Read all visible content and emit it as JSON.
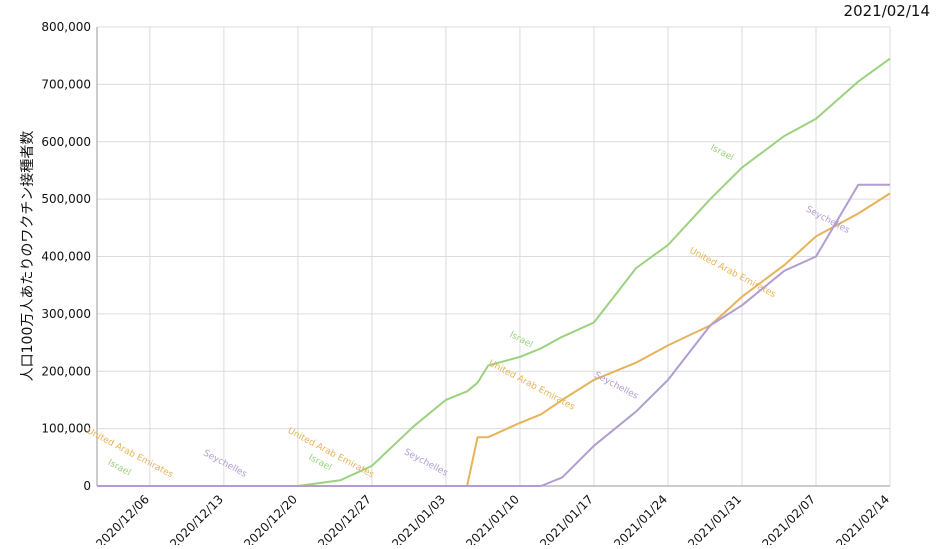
{
  "chart_data": {
    "type": "line",
    "title": "2021/02/14",
    "y_label": "人口100万人あたりのワクチン接種者数",
    "x": [
      "2020/12/01",
      "2020/12/06",
      "2020/12/13",
      "2020/12/20",
      "2020/12/24",
      "2020/12/27",
      "2020/12/31",
      "2021/01/03",
      "2021/01/05",
      "2021/01/06",
      "2021/01/07",
      "2021/01/10",
      "2021/01/12",
      "2021/01/14",
      "2021/01/17",
      "2021/01/21",
      "2021/01/24",
      "2021/01/28",
      "2021/01/31",
      "2021/02/04",
      "2021/02/07",
      "2021/02/11",
      "2021/02/14"
    ],
    "series": [
      {
        "name": "Israel",
        "color": "#9bd27f",
        "values": [
          0,
          0,
          0,
          0,
          10000,
          35000,
          105000,
          150000,
          165000,
          180000,
          210000,
          225000,
          240000,
          260000,
          285000,
          380000,
          420000,
          500000,
          555000,
          610000,
          640000,
          705000,
          745000
        ],
        "labels": [
          {
            "x": "2020/12/03",
            "y": 28000
          },
          {
            "x": "2020/12/22",
            "y": 37000
          },
          {
            "x": "2021/01/10",
            "y": 251000
          },
          {
            "x": "2021/01/29",
            "y": 577000
          }
        ]
      },
      {
        "name": "United Arab Emirates",
        "color": "#e6b35a",
        "values": [
          0,
          0,
          0,
          0,
          0,
          0,
          0,
          0,
          0,
          85000,
          85000,
          110000,
          125000,
          150000,
          185000,
          215000,
          245000,
          280000,
          330000,
          385000,
          435000,
          475000,
          510000
        ],
        "labels": [
          {
            "x": "2020/12/04",
            "y": 54000
          },
          {
            "x": "2020/12/23",
            "y": 54000
          },
          {
            "x": "2021/01/11",
            "y": 172000
          },
          {
            "x": "2021/01/30",
            "y": 368000
          }
        ]
      },
      {
        "name": "Seychelles",
        "color": "#b39cd0",
        "values": [
          0,
          0,
          0,
          0,
          0,
          0,
          0,
          0,
          0,
          0,
          0,
          0,
          0,
          15000,
          70000,
          130000,
          185000,
          280000,
          315000,
          375000,
          400000,
          525000,
          525000
        ],
        "labels": [
          {
            "x": "2020/12/13",
            "y": 35000
          },
          {
            "x": "2021/01/01",
            "y": 37000
          },
          {
            "x": "2021/01/19",
            "y": 171000
          },
          {
            "x": "2021/02/08",
            "y": 460000
          }
        ]
      }
    ],
    "xlim": [
      "2020/12/01",
      "2021/02/14"
    ],
    "xticks": [
      "2020/12/06",
      "2020/12/13",
      "2020/12/20",
      "2020/12/27",
      "2021/01/03",
      "2021/01/10",
      "2021/01/17",
      "2021/01/24",
      "2021/01/31",
      "2021/02/07",
      "2021/02/14"
    ],
    "ylim": [
      0,
      800000
    ],
    "yticks": [
      0,
      {
        "value": 100000,
        "label": "100,000"
      },
      {
        "value": 200000,
        "label": "200,000"
      },
      {
        "value": 300000,
        "label": "300,000"
      },
      {
        "value": 400000,
        "label": "400,000"
      },
      {
        "value": 500000,
        "label": "500,000"
      },
      {
        "value": 600000,
        "label": "600,000"
      },
      {
        "value": 700000,
        "label": "700,000"
      },
      {
        "value": 800000,
        "label": "800,000"
      }
    ],
    "grid": true
  }
}
